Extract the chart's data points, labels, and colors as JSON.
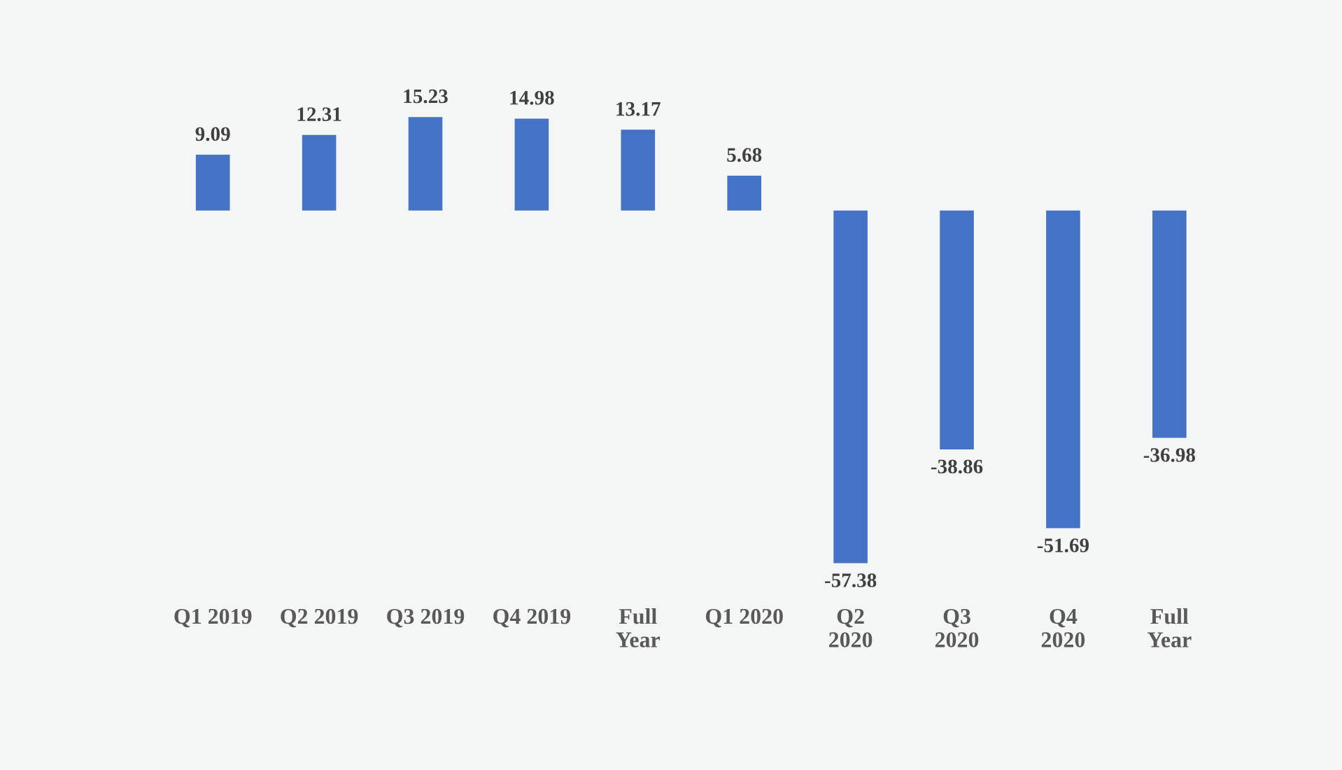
{
  "chart_data": {
    "type": "bar",
    "categories": [
      "Q1 2019",
      "Q2 2019",
      "Q3 2019",
      "Q4 2019",
      "Full\nYear",
      "Q1 2020",
      "Q2\n2020",
      "Q3\n2020",
      "Q4\n2020",
      "Full\nYear"
    ],
    "values": [
      9.09,
      12.31,
      15.23,
      14.98,
      13.17,
      5.68,
      -57.38,
      -38.86,
      -51.69,
      -36.98
    ],
    "color": "#4472c4",
    "data_labels": true,
    "grid": false,
    "legend": false
  }
}
